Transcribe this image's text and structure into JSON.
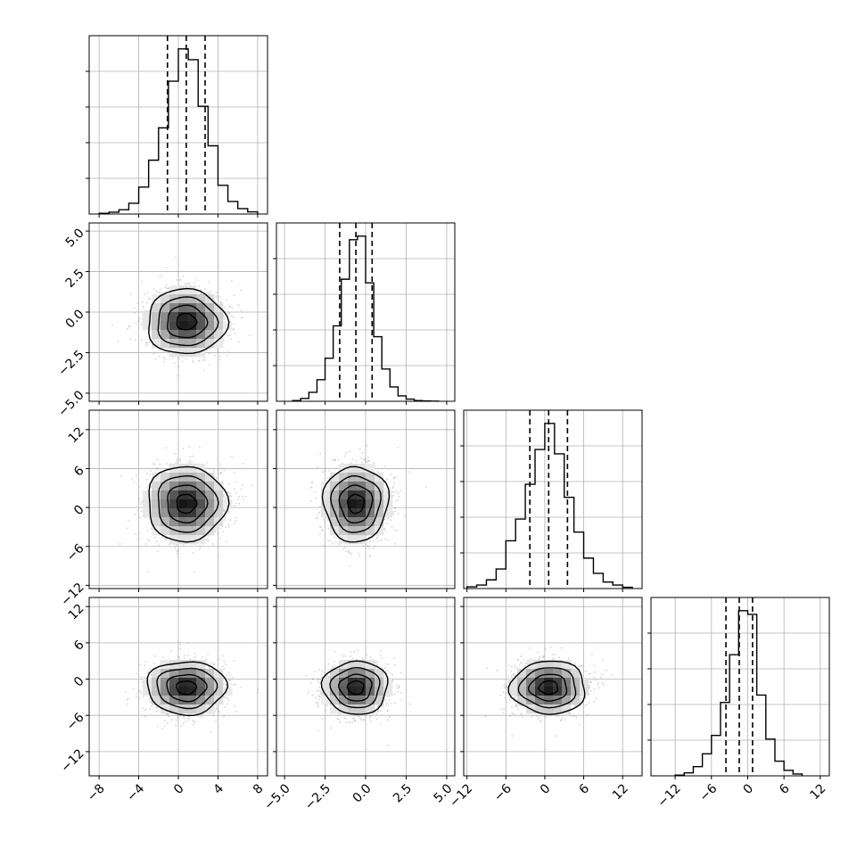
{
  "chart_data": {
    "type": "corner",
    "parameters": [
      {
        "center": 0.8,
        "sigma": 2.0,
        "range": [
          -9,
          9
        ],
        "ticks": [
          -8,
          -4,
          0,
          4,
          8
        ],
        "tick_labels": [
          "−8",
          "−4",
          "0",
          "4",
          "8"
        ],
        "quantiles": [
          -1.1,
          0.8,
          2.7
        ],
        "histogram": {
          "edges": [
            -8,
            -7,
            -6,
            -5,
            -4,
            -3,
            -2,
            -1,
            0,
            1,
            2,
            3,
            4,
            5,
            6,
            7,
            8
          ],
          "counts": [
            0.2,
            0.5,
            1.2,
            3.0,
            7.5,
            15,
            24,
            37,
            46,
            43,
            30,
            19,
            8,
            3.5,
            1.5,
            0.6
          ]
        }
      },
      {
        "center": -0.6,
        "sigma": 1.0,
        "range": [
          -5.5,
          5.5
        ],
        "ticks": [
          -5.0,
          -2.5,
          0.0,
          2.5,
          5.0
        ],
        "tick_labels": [
          "−5.0",
          "−2.5",
          "0.0",
          "2.5",
          "5.0"
        ],
        "quantiles": [
          -1.6,
          -0.6,
          0.4
        ],
        "histogram": {
          "edges": [
            -4.5,
            -4,
            -3.5,
            -3,
            -2.5,
            -2,
            -1.5,
            -1,
            -0.5,
            0,
            0.5,
            1,
            1.5,
            2,
            2.5,
            3,
            3.5,
            4,
            4.5
          ],
          "counts": [
            0.2,
            0.8,
            2.5,
            6,
            12,
            21,
            34,
            45,
            46,
            33,
            18,
            9,
            4,
            1.5,
            0.6,
            0.2,
            0.1,
            0.05
          ]
        }
      },
      {
        "center": 0.6,
        "sigma": 2.9,
        "range": [
          -12.5,
          15
        ],
        "ticks": [
          -12,
          -6,
          0,
          6,
          12
        ],
        "tick_labels": [
          "−12",
          "−6",
          "0",
          "6",
          "12"
        ],
        "quantiles": [
          -2.3,
          0.6,
          3.5
        ],
        "histogram": {
          "edges": [
            -12,
            -10.5,
            -9,
            -7.5,
            -6,
            -4.5,
            -3,
            -1.5,
            0,
            1.5,
            3,
            4.5,
            6,
            7.5,
            9,
            10.5,
            12,
            13.5
          ],
          "counts": [
            0.4,
            0.8,
            2,
            4.5,
            11,
            16,
            24,
            32,
            38,
            31,
            21,
            13,
            7,
            3.5,
            1.5,
            0.8,
            0.3
          ]
        }
      },
      {
        "center": -1.4,
        "sigma": 2.2,
        "range": [
          -16,
          13.5
        ],
        "ticks": [
          -12,
          -6,
          0,
          6,
          12
        ],
        "tick_labels": [
          "−12",
          "−6",
          "0",
          "6",
          "12"
        ],
        "quantiles": [
          -3.6,
          -1.4,
          0.8
        ],
        "histogram": {
          "edges": [
            -12,
            -10.5,
            -9,
            -7.5,
            -6,
            -4.5,
            -3,
            -1.5,
            0,
            1.5,
            3,
            4.5,
            6,
            7.5,
            9
          ],
          "counts": [
            0.2,
            0.8,
            2.5,
            6,
            11,
            20,
            33,
            45,
            44,
            22,
            10,
            4,
            1.5,
            0.5
          ]
        }
      }
    ]
  }
}
